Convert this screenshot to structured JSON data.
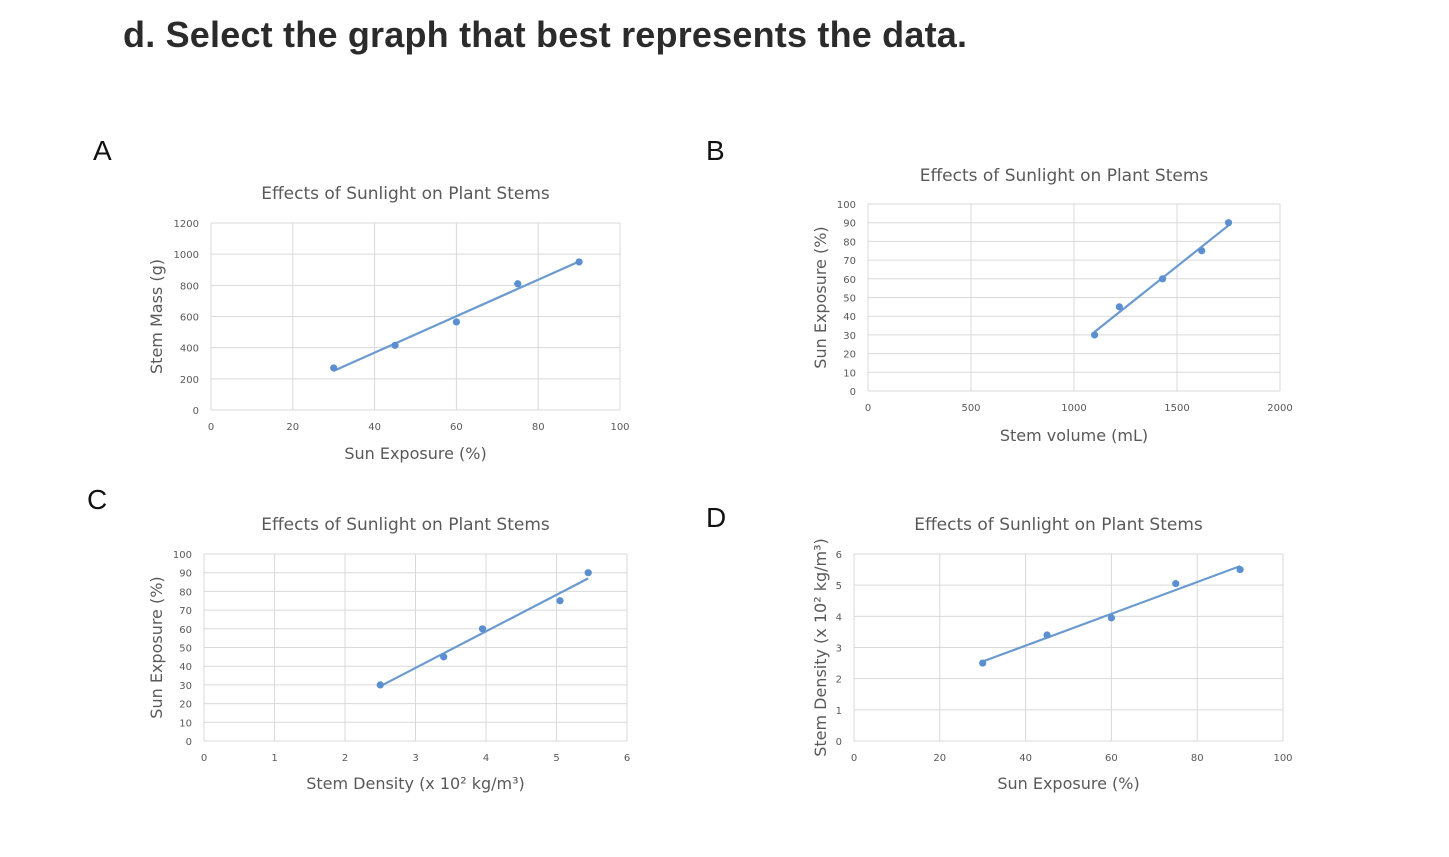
{
  "question": "d. Select the graph that best represents the data.",
  "chart_data": [
    {
      "id": "A",
      "type": "scatter",
      "title": "Effects of Sunlight on Plant Stems",
      "xlabel": "Sun Exposure (%)",
      "ylabel": "Stem Mass (g)",
      "xlim": [
        0,
        100
      ],
      "ylim": [
        0,
        1200
      ],
      "xticks": [
        0,
        20,
        40,
        60,
        80,
        100
      ],
      "yticks": [
        0,
        200,
        400,
        600,
        800,
        1000,
        1200
      ],
      "grid": true,
      "trendline": true,
      "points": [
        [
          30,
          270
        ],
        [
          45,
          415
        ],
        [
          60,
          565
        ],
        [
          75,
          810
        ],
        [
          90,
          950
        ]
      ]
    },
    {
      "id": "B",
      "type": "scatter",
      "title": "Effects of Sunlight on Plant Stems",
      "xlabel": "Stem volume (mL)",
      "ylabel": "Sun Exposure (%)",
      "xlim": [
        0,
        2000
      ],
      "ylim": [
        0,
        100
      ],
      "xticks": [
        0,
        500,
        1000,
        1500,
        2000
      ],
      "yticks": [
        0,
        10,
        20,
        30,
        40,
        50,
        60,
        70,
        80,
        90,
        100
      ],
      "grid": true,
      "trendline": true,
      "points": [
        [
          1100,
          30
        ],
        [
          1220,
          45
        ],
        [
          1430,
          60
        ],
        [
          1620,
          75
        ],
        [
          1750,
          90
        ]
      ]
    },
    {
      "id": "C",
      "type": "scatter",
      "title": "Effects of Sunlight on Plant Stems",
      "xlabel": "Stem Density (x 10² kg/m³)",
      "ylabel": "Sun Exposure (%)",
      "xlim": [
        0,
        6
      ],
      "ylim": [
        0,
        100
      ],
      "xticks": [
        0,
        1,
        2,
        3,
        4,
        5,
        6
      ],
      "yticks": [
        0,
        10,
        20,
        30,
        40,
        50,
        60,
        70,
        80,
        90,
        100
      ],
      "grid": true,
      "trendline": true,
      "points": [
        [
          2.5,
          30
        ],
        [
          3.4,
          45
        ],
        [
          3.95,
          60
        ],
        [
          5.05,
          75
        ],
        [
          5.45,
          90
        ]
      ]
    },
    {
      "id": "D",
      "type": "scatter",
      "title": "Effects of Sunlight on Plant Stems",
      "xlabel": "Sun Exposure (%)",
      "ylabel": "Stem Density (x 10² kg/m³)",
      "xlim": [
        0,
        100
      ],
      "ylim": [
        0,
        6
      ],
      "xticks": [
        0,
        20,
        40,
        60,
        80,
        100
      ],
      "yticks": [
        0,
        1,
        2,
        3,
        4,
        5,
        6
      ],
      "grid": true,
      "trendline": true,
      "points": [
        [
          30,
          2.5
        ],
        [
          45,
          3.4
        ],
        [
          60,
          3.95
        ],
        [
          75,
          5.05
        ],
        [
          90,
          5.5
        ]
      ]
    }
  ]
}
